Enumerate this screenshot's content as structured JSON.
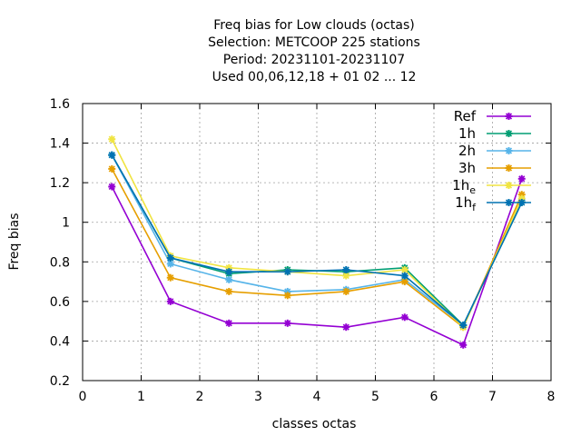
{
  "chart_data": {
    "type": "line",
    "title_lines": [
      "Freq bias  for Low clouds (octas)",
      "Selection: METCOOP    225 stations",
      "Period: 20231101-20231107",
      "Used  00,06,12,18 + 01 02 ... 12"
    ],
    "xlabel": "classes octas",
    "ylabel": "Freq bias",
    "xlim": [
      0,
      8
    ],
    "ylim": [
      0.2,
      1.6
    ],
    "xticks": [
      "0",
      "1",
      "2",
      "3",
      "4",
      "5",
      "6",
      "7",
      "8"
    ],
    "yticks": [
      "0.2",
      "0.4",
      "0.6",
      "0.8",
      "1",
      "1.2",
      "1.4",
      "1.6"
    ],
    "grid": true,
    "legend_position": "top-right",
    "x": [
      0.5,
      1.5,
      2.5,
      3.5,
      4.5,
      5.5,
      6.5,
      7.5
    ],
    "series": [
      {
        "name": "Ref",
        "color": "#9400d3",
        "values": [
          1.18,
          0.6,
          0.49,
          0.49,
          0.47,
          0.52,
          0.38,
          1.22
        ]
      },
      {
        "name": "1h",
        "color": "#009e73",
        "values": [
          1.34,
          0.82,
          0.74,
          0.76,
          0.75,
          0.77,
          0.48,
          1.1
        ]
      },
      {
        "name": "2h",
        "color": "#56b4e9",
        "values": [
          1.34,
          0.79,
          0.71,
          0.65,
          0.66,
          0.71,
          0.48,
          1.11
        ]
      },
      {
        "name": "3h",
        "color": "#e69f00",
        "values": [
          1.27,
          0.72,
          0.65,
          0.63,
          0.65,
          0.7,
          0.47,
          1.14
        ]
      },
      {
        "name": "1h",
        "sub": "e",
        "color": "#f0e442",
        "values": [
          1.42,
          0.83,
          0.77,
          0.75,
          0.73,
          0.76,
          0.47,
          1.12
        ]
      },
      {
        "name": "1h",
        "sub": "f",
        "color": "#0072b2",
        "values": [
          1.34,
          0.82,
          0.75,
          0.75,
          0.76,
          0.73,
          0.48,
          1.1
        ]
      }
    ]
  }
}
